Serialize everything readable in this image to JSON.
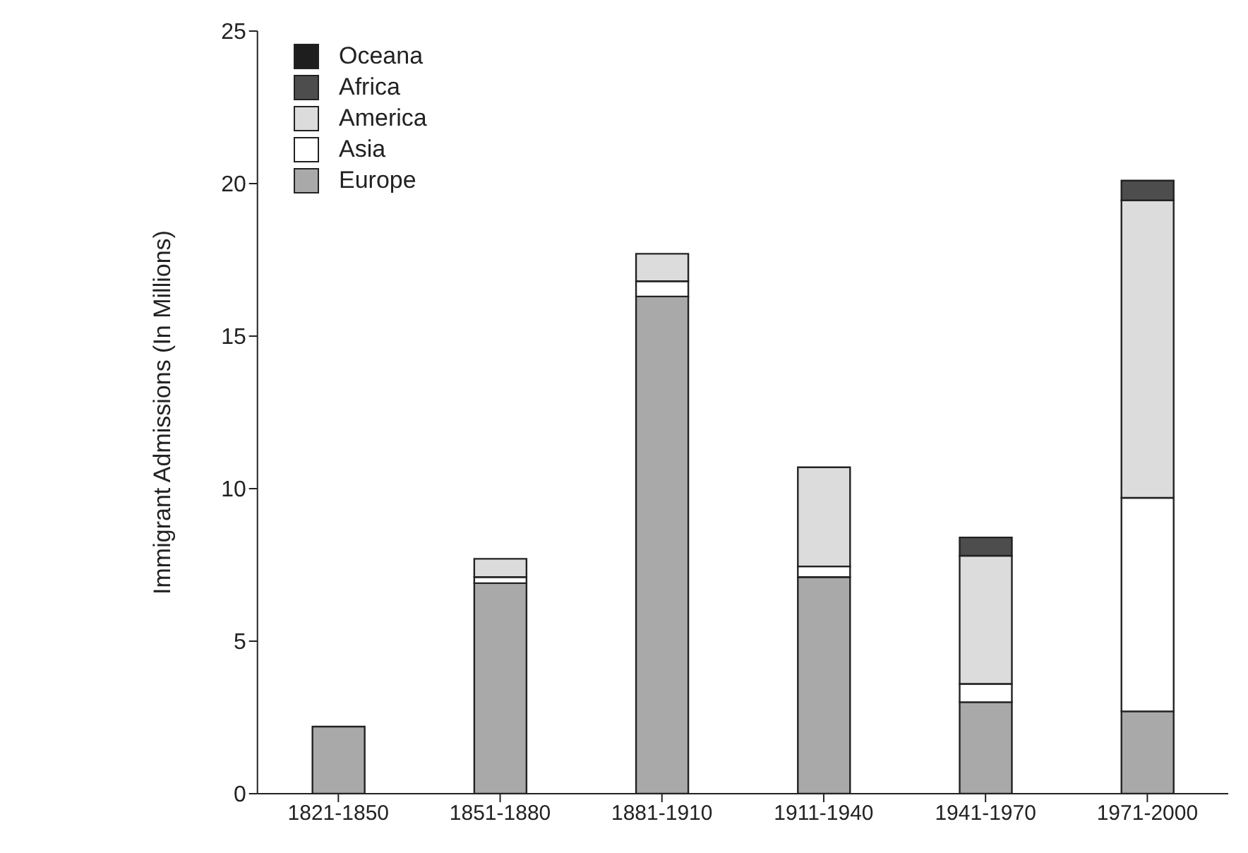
{
  "chart_data": {
    "type": "bar",
    "stacked": true,
    "ylabel": "Immigrant Admissions (In Millions)",
    "categories": [
      "1821-1850",
      "1851-1880",
      "1881-1910",
      "1911-1940",
      "1941-1970",
      "1971-2000"
    ],
    "series": [
      {
        "name": "Europe",
        "color": "#a9a9a9",
        "values": [
          2.2,
          6.9,
          16.3,
          7.1,
          3.0,
          2.7
        ]
      },
      {
        "name": "Asia",
        "color": "#ffffff",
        "values": [
          null,
          0.2,
          0.5,
          0.35,
          0.6,
          7.0
        ]
      },
      {
        "name": "America",
        "color": "#dcdcdc",
        "values": [
          null,
          0.6,
          0.9,
          3.25,
          4.2,
          9.75
        ]
      },
      {
        "name": "Africa",
        "color": "#4d4d4d",
        "values": [
          null,
          null,
          null,
          null,
          0.6,
          0.65
        ]
      },
      {
        "name": "Oceana",
        "color": "#1e1e1e",
        "values": [
          null,
          null,
          null,
          null,
          null,
          null
        ]
      }
    ],
    "ylim": [
      0,
      25
    ],
    "yticks": [
      0,
      5,
      10,
      15,
      20,
      25
    ],
    "grid": false,
    "legend": "top left"
  }
}
